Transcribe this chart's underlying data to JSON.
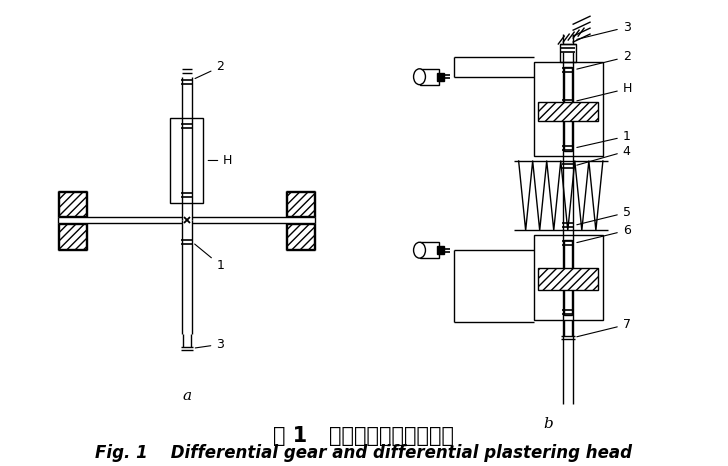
{
  "title_cn": "图 1   差动轮系及差动抒灰头",
  "title_en": "Fig. 1    Differential gear and differential plastering head",
  "label_a": "a",
  "label_b": "b",
  "bg_color": "#ffffff",
  "line_color": "#000000",
  "lw": 1.0
}
